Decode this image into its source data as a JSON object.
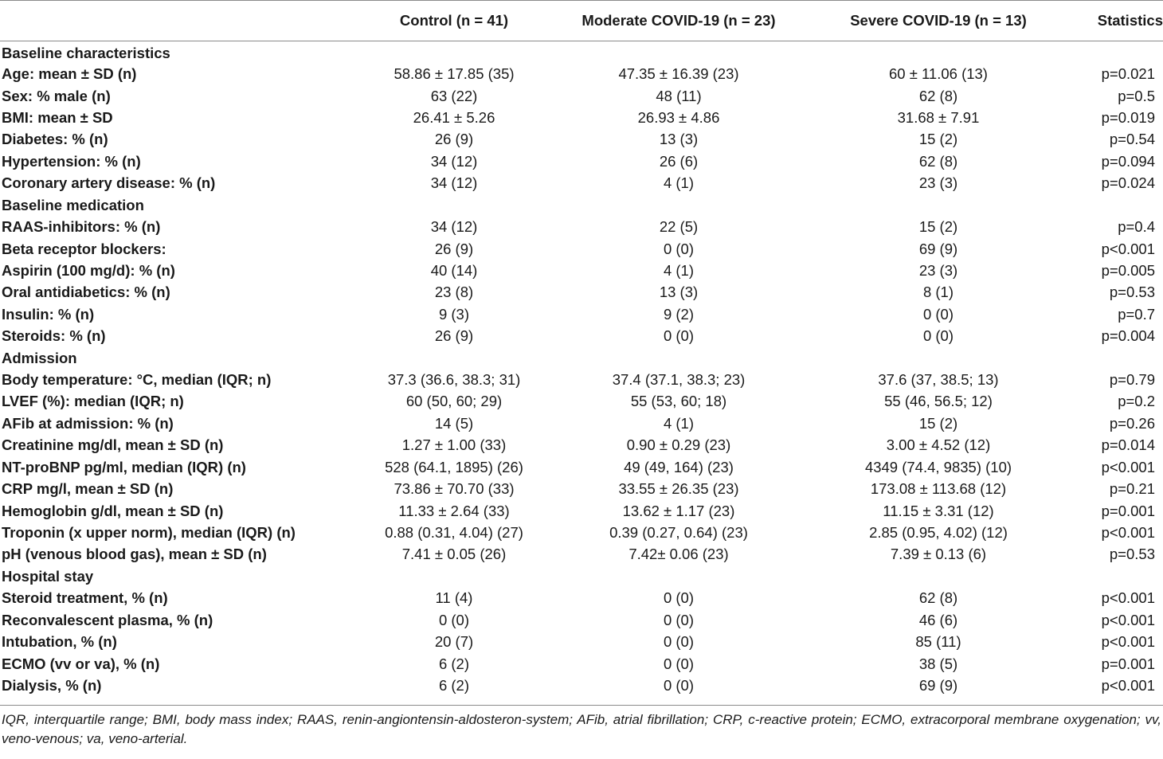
{
  "table": {
    "headers": [
      "",
      "Control (n = 41)",
      "Moderate COVID-19 (n = 23)",
      "Severe COVID-19 (n = 13)",
      "Statistics"
    ],
    "sections": [
      {
        "title": "Baseline characteristics",
        "rows": [
          [
            "Age: mean ± SD (n)",
            "58.86 ± 17.85 (35)",
            "47.35 ± 16.39 (23)",
            "60 ± 11.06 (13)",
            "p=0.021"
          ],
          [
            "Sex: % male (n)",
            "63 (22)",
            "48 (11)",
            "62 (8)",
            "p=0.5"
          ],
          [
            "BMI: mean ± SD",
            "26.41 ± 5.26",
            "26.93 ± 4.86",
            "31.68 ± 7.91",
            "p=0.019"
          ],
          [
            "Diabetes: % (n)",
            "26 (9)",
            "13 (3)",
            "15 (2)",
            "p=0.54"
          ],
          [
            "Hypertension: % (n)",
            "34 (12)",
            "26 (6)",
            "62 (8)",
            "p=0.094"
          ],
          [
            "Coronary artery disease: % (n)",
            "34 (12)",
            "4 (1)",
            "23 (3)",
            "p=0.024"
          ]
        ]
      },
      {
        "title": "Baseline medication",
        "rows": [
          [
            "RAAS-inhibitors: % (n)",
            "34 (12)",
            "22 (5)",
            "15 (2)",
            "p=0.4"
          ],
          [
            "Beta receptor blockers:",
            "26 (9)",
            "0 (0)",
            "69 (9)",
            "p<0.001"
          ],
          [
            "Aspirin (100 mg/d): % (n)",
            "40 (14)",
            "4 (1)",
            "23 (3)",
            "p=0.005"
          ],
          [
            "Oral antidiabetics: % (n)",
            "23 (8)",
            "13 (3)",
            "8 (1)",
            "p=0.53"
          ],
          [
            "Insulin: % (n)",
            "9 (3)",
            "9 (2)",
            "0 (0)",
            "p=0.7"
          ],
          [
            "Steroids: % (n)",
            "26 (9)",
            "0 (0)",
            "0 (0)",
            "p=0.004"
          ]
        ]
      },
      {
        "title": "Admission",
        "rows": [
          [
            "Body temperature: °C, median (IQR; n)",
            "37.3 (36.6, 38.3; 31)",
            "37.4 (37.1, 38.3; 23)",
            "37.6 (37, 38.5; 13)",
            "p=0.79"
          ],
          [
            "LVEF (%): median (IQR; n)",
            "60 (50, 60; 29)",
            "55 (53, 60; 18)",
            "55 (46, 56.5; 12)",
            "p=0.2"
          ],
          [
            "AFib at admission: % (n)",
            "14 (5)",
            "4 (1)",
            "15 (2)",
            "p=0.26"
          ],
          [
            "Creatinine mg/dl, mean ± SD (n)",
            "1.27 ± 1.00 (33)",
            "0.90 ± 0.29 (23)",
            "3.00 ± 4.52 (12)",
            "p=0.014"
          ],
          [
            "NT-proBNP pg/ml, median (IQR) (n)",
            "528 (64.1, 1895) (26)",
            "49 (49, 164) (23)",
            "4349 (74.4, 9835) (10)",
            "p<0.001"
          ],
          [
            "CRP mg/l, mean ± SD (n)",
            "73.86 ± 70.70 (33)",
            "33.55 ± 26.35 (23)",
            "173.08 ± 113.68 (12)",
            "p=0.21"
          ],
          [
            "Hemoglobin g/dl, mean ± SD (n)",
            "11.33 ± 2.64 (33)",
            "13.62 ± 1.17 (23)",
            "11.15 ± 3.31 (12)",
            "p=0.001"
          ],
          [
            "Troponin (x upper norm), median (IQR) (n)",
            "0.88 (0.31, 4.04) (27)",
            "0.39 (0.27, 0.64) (23)",
            "2.85 (0.95, 4.02) (12)",
            "p<0.001"
          ],
          [
            "pH (venous blood gas), mean ± SD (n)",
            "7.41 ± 0.05 (26)",
            "7.42± 0.06 (23)",
            "7.39 ± 0.13 (6)",
            "p=0.53"
          ]
        ]
      },
      {
        "title": "Hospital stay",
        "rows": [
          [
            "Steroid treatment, % (n)",
            "11 (4)",
            "0 (0)",
            "62 (8)",
            "p<0.001"
          ],
          [
            "Reconvalescent plasma, % (n)",
            "0 (0)",
            "0 (0)",
            "46 (6)",
            "p<0.001"
          ],
          [
            "Intubation, % (n)",
            "20 (7)",
            "0 (0)",
            "85 (11)",
            "p<0.001"
          ],
          [
            "ECMO (vv or va), % (n)",
            "6 (2)",
            "0 (0)",
            "38 (5)",
            "p=0.001"
          ],
          [
            "Dialysis, % (n)",
            "6 (2)",
            "0 (0)",
            "69 (9)",
            "p<0.001"
          ]
        ]
      }
    ]
  },
  "footnote": "IQR, interquartile range; BMI, body mass index; RAAS, renin-angiontensin-aldosteron-system; AFib, atrial fibrillation; CRP, c-reactive protein; ECMO, extracorporal membrane oxygenation; vv, veno-venous; va, veno-arterial."
}
